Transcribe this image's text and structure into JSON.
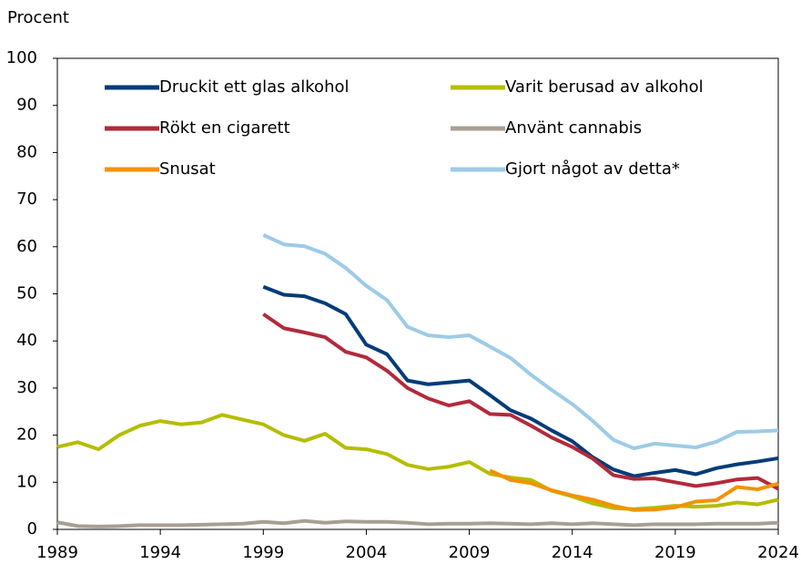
{
  "chart_data": {
    "type": "line",
    "y_label": "Procent",
    "x": [
      1989,
      1990,
      1991,
      1992,
      1993,
      1994,
      1995,
      1996,
      1997,
      1998,
      1999,
      2000,
      2001,
      2002,
      2003,
      2004,
      2005,
      2006,
      2007,
      2008,
      2009,
      2010,
      2011,
      2012,
      2013,
      2014,
      2015,
      2016,
      2017,
      2018,
      2019,
      2020,
      2021,
      2022,
      2023,
      2024
    ],
    "xlim": [
      1989,
      2024
    ],
    "xticks": [
      1989,
      1994,
      1999,
      2004,
      2009,
      2014,
      2019,
      2024
    ],
    "ylim": [
      0,
      100
    ],
    "yticks": [
      0,
      10,
      20,
      30,
      40,
      50,
      60,
      70,
      80,
      90,
      100
    ],
    "series": [
      {
        "name": "Druckit ett glas alkohol",
        "color": "#003c78",
        "values": [
          null,
          null,
          null,
          null,
          null,
          null,
          null,
          null,
          null,
          null,
          51.5,
          49.8,
          49.5,
          48,
          45.7,
          39.2,
          37.2,
          31.6,
          30.8,
          31.2,
          31.6,
          28.5,
          25.3,
          23.5,
          21,
          18.7,
          15.3,
          12.7,
          11.3,
          12,
          12.6,
          11.7,
          13,
          13.8,
          14.4,
          15.1
        ]
      },
      {
        "name": "Varit berusad av alkohol",
        "color": "#b5bd00",
        "values": [
          17.5,
          18.5,
          17,
          20,
          22,
          23,
          22.3,
          22.7,
          24.3,
          23.3,
          22.3,
          20,
          18.8,
          20.3,
          17.3,
          17,
          16,
          13.7,
          12.8,
          13.3,
          14.3,
          11.8,
          11,
          10.5,
          8.2,
          7,
          5.5,
          4.5,
          4.3,
          4.6,
          5,
          4.8,
          5,
          5.7,
          5.3,
          6.3
        ]
      },
      {
        "name": "Rökt en cigarett",
        "color": "#b22a3a",
        "values": [
          null,
          null,
          null,
          null,
          null,
          null,
          null,
          null,
          null,
          null,
          45.7,
          42.7,
          41.8,
          40.8,
          37.7,
          36.5,
          33.7,
          30,
          27.8,
          26.3,
          27.2,
          24.5,
          24.3,
          22,
          19.5,
          17.5,
          15,
          11.5,
          10.7,
          10.8,
          10,
          9.2,
          9.8,
          10.6,
          10.9,
          8.6
        ]
      },
      {
        "name": "Använt cannabis",
        "color": "#a89f94",
        "values": [
          1.5,
          0.7,
          0.6,
          0.7,
          0.9,
          0.9,
          0.9,
          1,
          1.1,
          1.2,
          1.6,
          1.3,
          1.8,
          1.4,
          1.7,
          1.6,
          1.6,
          1.4,
          1.1,
          1.2,
          1.2,
          1.3,
          1.2,
          1.1,
          1.3,
          1.1,
          1.3,
          1.1,
          0.9,
          1.1,
          1.1,
          1.1,
          1.2,
          1.2,
          1.2,
          1.4
        ]
      },
      {
        "name": "Snusat",
        "color": "#f39200",
        "values": [
          null,
          null,
          null,
          null,
          null,
          null,
          null,
          null,
          null,
          null,
          null,
          null,
          null,
          null,
          null,
          null,
          null,
          null,
          null,
          null,
          null,
          12.5,
          10.5,
          9.8,
          8.3,
          7.2,
          6.3,
          5,
          4.1,
          4.2,
          4.7,
          5.9,
          6.2,
          9,
          8.5,
          9.7
        ]
      },
      {
        "name": "Gjort något av detta*",
        "color": "#9dcbe6",
        "values": [
          null,
          null,
          null,
          null,
          null,
          null,
          null,
          null,
          null,
          null,
          62.5,
          60.5,
          60.1,
          58.5,
          55.5,
          51.7,
          48.7,
          43,
          41.2,
          40.8,
          41.2,
          38.8,
          36.4,
          32.8,
          29.6,
          26.6,
          23,
          19,
          17.2,
          18.2,
          17.8,
          17.4,
          18.6,
          20.7,
          20.8,
          21
        ]
      }
    ]
  }
}
